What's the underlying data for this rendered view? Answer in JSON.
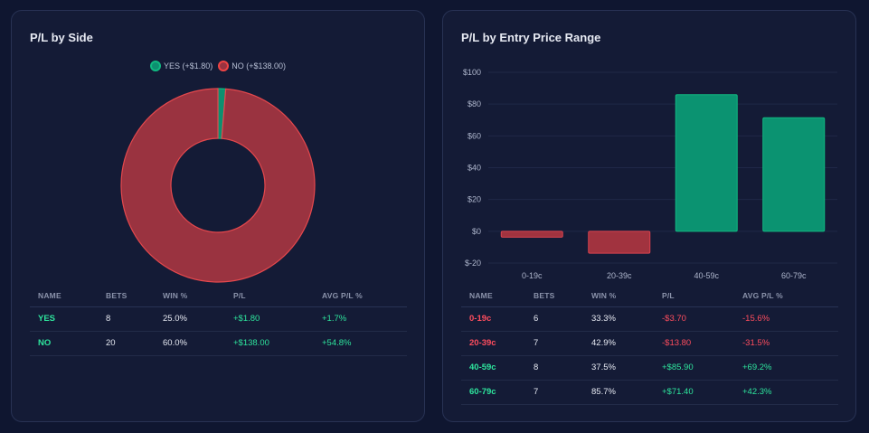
{
  "side_card": {
    "title": "P/L by Side",
    "legend": [
      {
        "label": "YES (+$1.80)",
        "color": "#10b981"
      },
      {
        "label": "NO (+$138.00)",
        "color": "#ef4444"
      }
    ],
    "chart_data": {
      "type": "pie",
      "categories": [
        "YES",
        "NO"
      ],
      "values": [
        1.8,
        138.0
      ],
      "colors": [
        "#0d9070",
        "#9a3340"
      ],
      "border_colors": [
        "#10b981",
        "#e5484d"
      ]
    },
    "table": {
      "headers": [
        "NAME",
        "BETS",
        "WIN %",
        "P/L",
        "AVG P/L %"
      ],
      "rows": [
        {
          "name": "YES",
          "bets": "8",
          "win": "25.0%",
          "pl": "+$1.80",
          "avg": "+1.7%",
          "sign": "pos"
        },
        {
          "name": "NO",
          "bets": "20",
          "win": "60.0%",
          "pl": "+$138.00",
          "avg": "+54.8%",
          "sign": "pos"
        }
      ]
    }
  },
  "range_card": {
    "title": "P/L by Entry Price Range",
    "chart_data": {
      "type": "bar",
      "categories": [
        "0-19c",
        "20-39c",
        "40-59c",
        "60-79c"
      ],
      "values": [
        -3.7,
        -13.8,
        85.9,
        71.4
      ],
      "ylim": [
        -20,
        100
      ],
      "yticks": [
        -20,
        0,
        20,
        40,
        60,
        80,
        100
      ],
      "ytick_labels": [
        "$-20",
        "$0",
        "$20",
        "$40",
        "$60",
        "$80",
        "$100"
      ],
      "pos_color": "#0b9371",
      "neg_color": "#a1333f"
    },
    "table": {
      "headers": [
        "NAME",
        "BETS",
        "WIN %",
        "P/L",
        "AVG P/L %"
      ],
      "rows": [
        {
          "name": "0-19c",
          "bets": "6",
          "win": "33.3%",
          "pl": "-$3.70",
          "avg": "-15.6%",
          "sign": "neg"
        },
        {
          "name": "20-39c",
          "bets": "7",
          "win": "42.9%",
          "pl": "-$13.80",
          "avg": "-31.5%",
          "sign": "neg"
        },
        {
          "name": "40-59c",
          "bets": "8",
          "win": "37.5%",
          "pl": "+$85.90",
          "avg": "+69.2%",
          "sign": "pos"
        },
        {
          "name": "60-79c",
          "bets": "7",
          "win": "85.7%",
          "pl": "+$71.40",
          "avg": "+42.3%",
          "sign": "pos"
        }
      ]
    }
  }
}
